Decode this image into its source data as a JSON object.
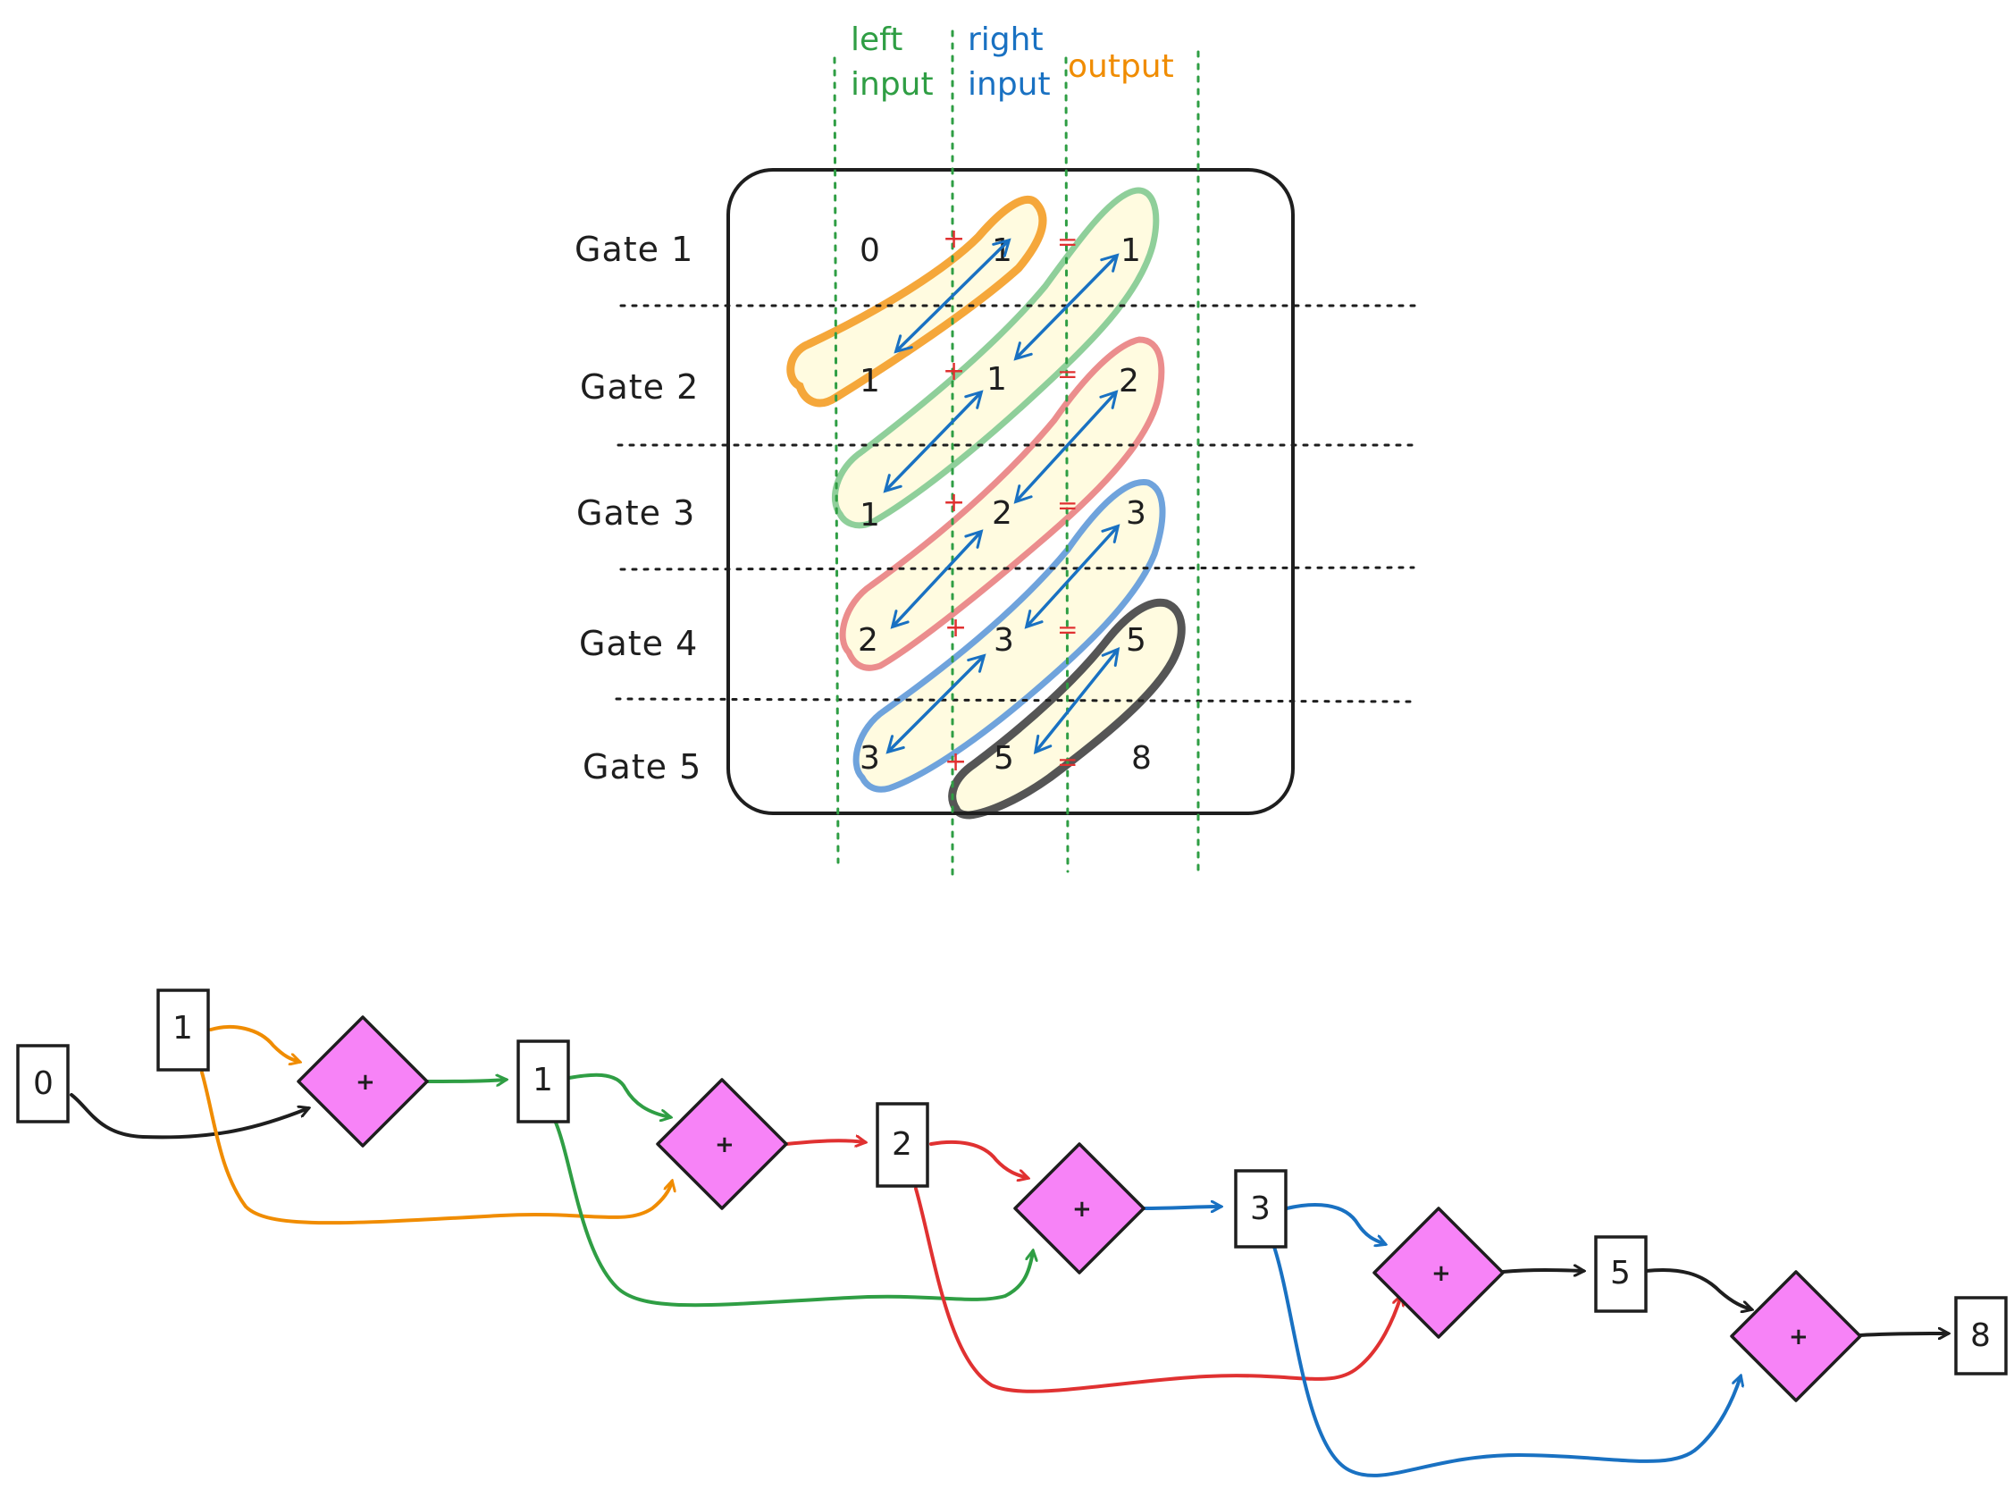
{
  "colors": {
    "stroke": "#1e1e1e",
    "green": "#2f9e44",
    "blue": "#1971c2",
    "orange": "#f08c00",
    "red": "#e03131",
    "gate_fill": "#f783f7",
    "highlight_orange": "#f5a73a",
    "highlight_green": "#8fcf9a",
    "highlight_red": "#eb8d8d",
    "highlight_blue": "#6fa3dc",
    "highlight_gray": "#555555",
    "highlight_fill": "#fffbe0"
  },
  "table": {
    "column_headers": {
      "left_line1": "left",
      "left_line2": "input",
      "right_line1": "right",
      "right_line2": "input",
      "output": "output"
    },
    "plus_sign": "+",
    "equals_sign": "=",
    "rows": [
      {
        "label": "Gate 1",
        "left": "0",
        "right": "1",
        "out": "1"
      },
      {
        "label": "Gate 2",
        "left": "1",
        "right": "1",
        "out": "2"
      },
      {
        "label": "Gate 3",
        "left": "1",
        "right": "2",
        "out": "3"
      },
      {
        "label": "Gate 4",
        "left": "2",
        "right": "3",
        "out": "5"
      },
      {
        "label": "Gate 5",
        "left": "3",
        "right": "5",
        "out": "8"
      }
    ]
  },
  "circuit": {
    "operator": "+",
    "values": [
      "0",
      "1",
      "1",
      "2",
      "3",
      "5",
      "8"
    ],
    "gate_count": 5
  }
}
